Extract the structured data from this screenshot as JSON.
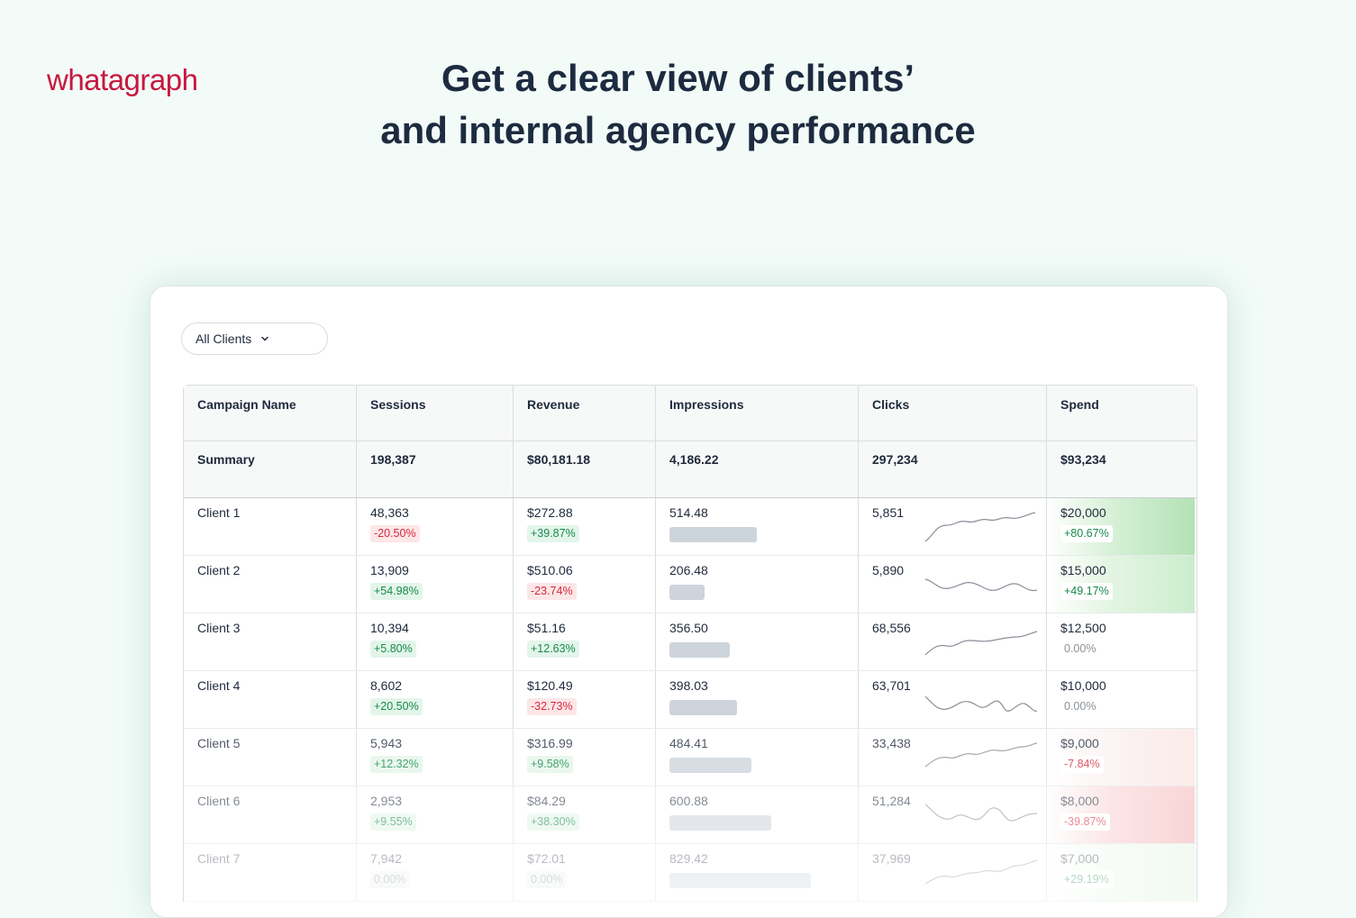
{
  "brand": {
    "logo": "whatagraph"
  },
  "headline": {
    "line1": "Get a clear view of clients’",
    "line2": "and internal agency performance"
  },
  "filter": {
    "label": "All Clients"
  },
  "table": {
    "headers": [
      "Campaign Name",
      "Sessions",
      "Revenue",
      "Impressions",
      "Clicks",
      "Spend"
    ],
    "summary": {
      "label": "Summary",
      "sessions": "198,387",
      "revenue": "$80,181.18",
      "impressions": "4,186.22",
      "clicks": "297,234",
      "spend": "$93,234"
    },
    "rows": [
      {
        "name": "Client 1",
        "sessions": "48,363",
        "sessions_change": "-20.50%",
        "revenue": "$272.88",
        "revenue_change": "+39.87%",
        "impressions": "514.48",
        "clicks": "5,851",
        "spend": "$20,000",
        "spend_change": "+80.67%"
      },
      {
        "name": "Client 2",
        "sessions": "13,909",
        "sessions_change": "+54.98%",
        "revenue": "$510.06",
        "revenue_change": "-23.74%",
        "impressions": "206.48",
        "clicks": "5,890",
        "spend": "$15,000",
        "spend_change": "+49.17%"
      },
      {
        "name": "Client 3",
        "sessions": "10,394",
        "sessions_change": "+5.80%",
        "revenue": "$51.16",
        "revenue_change": "+12.63%",
        "impressions": "356.50",
        "clicks": "68,556",
        "spend": "$12,500",
        "spend_change": "0.00%"
      },
      {
        "name": "Client 4",
        "sessions": "8,602",
        "sessions_change": "+20.50%",
        "revenue": "$120.49",
        "revenue_change": "-32.73%",
        "impressions": "398.03",
        "clicks": "63,701",
        "spend": "$10,000",
        "spend_change": "0.00%"
      },
      {
        "name": "Client 5",
        "sessions": "5,943",
        "sessions_change": "+12.32%",
        "revenue": "$316.99",
        "revenue_change": "+9.58%",
        "impressions": "484.41",
        "clicks": "33,438",
        "spend": "$9,000",
        "spend_change": "-7.84%"
      },
      {
        "name": "Client 6",
        "sessions": "2,953",
        "sessions_change": "+9.55%",
        "revenue": "$84.29",
        "revenue_change": "+38.30%",
        "impressions": "600.88",
        "clicks": "51,284",
        "spend": "$8,000",
        "spend_change": "-39.87%"
      },
      {
        "name": "Client 7",
        "sessions": "7,942",
        "sessions_change": "0.00%",
        "revenue": "$72.01",
        "revenue_change": "0.00%",
        "impressions": "829.42",
        "clicks": "37,969",
        "spend": "$7,000",
        "spend_change": "+29.19%"
      }
    ]
  },
  "colors": {
    "brand": "#c8173f",
    "positive": "#178a4b",
    "negative": "#d8283c",
    "spend_high": "#b7e3b8",
    "spend_low": "#f5b8bb"
  }
}
